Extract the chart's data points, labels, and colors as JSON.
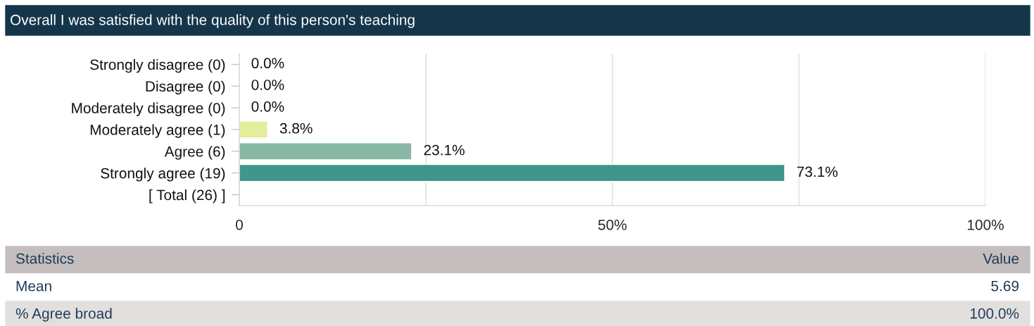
{
  "chart_data": {
    "type": "bar",
    "orientation": "horizontal",
    "title": "Overall I was satisfied with the quality of this person's teaching",
    "categories": [
      "Strongly disagree (0)",
      "Disagree (0)",
      "Moderately disagree (0)",
      "Moderately agree (1)",
      "Agree (6)",
      "Strongly agree (19)",
      "[ Total (26) ]"
    ],
    "values": [
      0,
      0,
      0,
      3.8,
      23.1,
      73.1,
      null
    ],
    "value_labels": [
      "0.0%",
      "0.0%",
      "0.0%",
      "3.8%",
      "23.1%",
      "73.1%",
      null
    ],
    "colors": [
      null,
      null,
      null,
      "#e3ed9b",
      "#8ab8a6",
      "#3f968a",
      null
    ],
    "xlim": [
      0,
      100
    ],
    "xticks": [
      {
        "value": 0,
        "label": "0"
      },
      {
        "value": 25,
        "label": null
      },
      {
        "value": 50,
        "label": "50%"
      },
      {
        "value": 75,
        "label": null
      },
      {
        "value": 100,
        "label": "100%"
      }
    ],
    "grid": "x",
    "legend": false,
    "annotations": [
      "Statistics",
      "Value",
      "Mean",
      "5.69",
      "% Agree broad",
      "100.0%"
    ]
  }
}
